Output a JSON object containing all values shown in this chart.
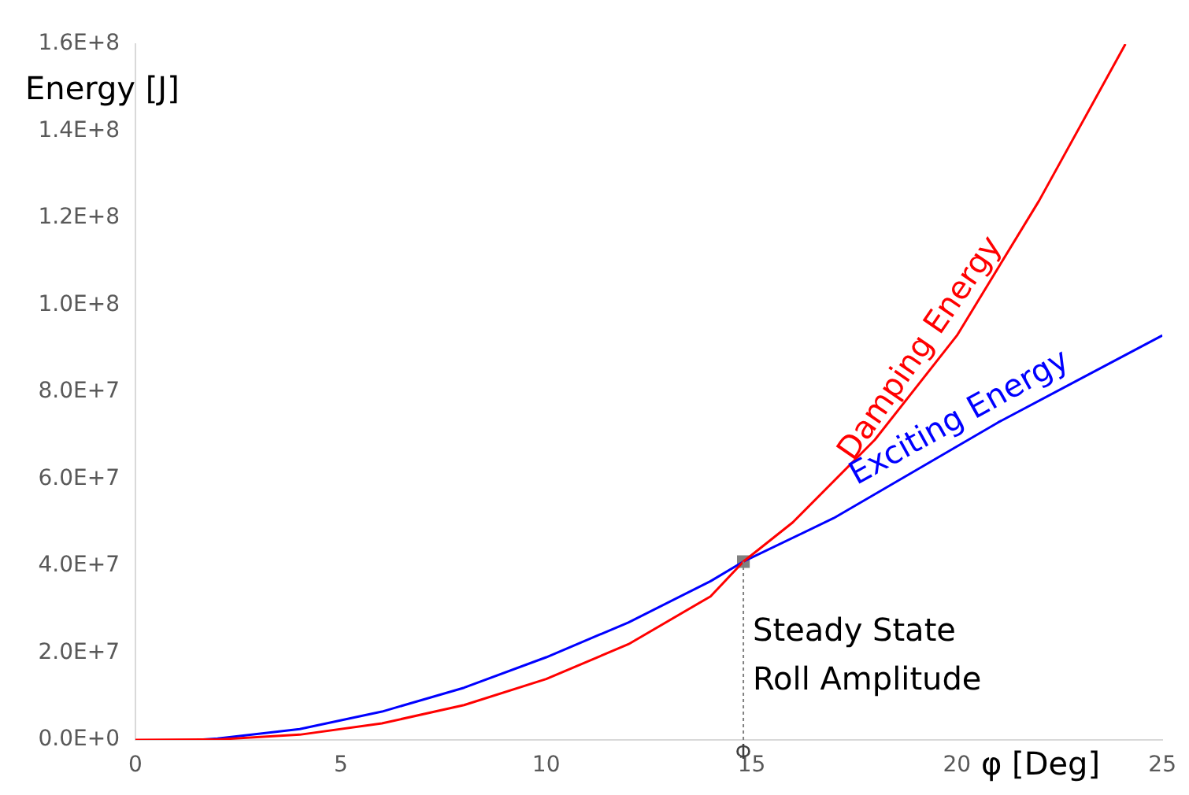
{
  "chart_data": {
    "type": "line",
    "xlabel": "φ [Deg]",
    "ylabel": "Energy [J]",
    "xlim": [
      0,
      25
    ],
    "xticks": [
      0,
      5,
      10,
      15,
      20,
      25
    ],
    "ylim": [
      0,
      160000000
    ],
    "yticks": [
      {
        "value": 0,
        "label": "0.0E+0"
      },
      {
        "value": 20000000,
        "label": "2.0E+7"
      },
      {
        "value": 40000000,
        "label": "4.0E+7"
      },
      {
        "value": 60000000,
        "label": "6.0E+7"
      },
      {
        "value": 80000000,
        "label": "8.0E+7"
      },
      {
        "value": 100000000,
        "label": "1.0E+8"
      },
      {
        "value": 120000000,
        "label": "1.2E+8"
      },
      {
        "value": 140000000,
        "label": "1.4E+8"
      },
      {
        "value": 160000000,
        "label": "1.6E+8"
      }
    ],
    "grid": false,
    "legend": false,
    "marker": "none",
    "line_style": "solid",
    "series": [
      {
        "name": "Damping Energy",
        "color": "#ff0000",
        "x": [
          0,
          2,
          4,
          6,
          8,
          10,
          12,
          14,
          14.8,
          16,
          18,
          20,
          22,
          24.1
        ],
        "values": [
          0,
          100000,
          1200000,
          3800000,
          8000000,
          14000000,
          22000000,
          33000000,
          41000000,
          50000000,
          69000000,
          93000000,
          124000000,
          160000000
        ]
      },
      {
        "name": "Exciting Energy",
        "color": "#0000ff",
        "x": [
          1.5,
          2,
          4,
          6,
          8,
          10,
          12,
          14,
          14.8,
          17,
          19,
          21,
          23,
          25
        ],
        "values": [
          0,
          300000,
          2500000,
          6500000,
          12000000,
          19000000,
          27000000,
          36500000,
          41000000,
          51000000,
          62000000,
          73000000,
          83000000,
          93000000
        ]
      },
      {
        "type": "scatter",
        "color": "#808080",
        "marker": "square",
        "x": [
          14.8
        ],
        "values": [
          41000000
        ]
      }
    ],
    "ref_lines": [
      {
        "axis": "x",
        "value": 14.8,
        "label": "Φ",
        "color": "#808080",
        "line_style": "dotted"
      }
    ],
    "annotations": [
      {
        "text": "Steady State Roll Amplitude",
        "x": 14.8,
        "y": 41000000
      }
    ]
  }
}
